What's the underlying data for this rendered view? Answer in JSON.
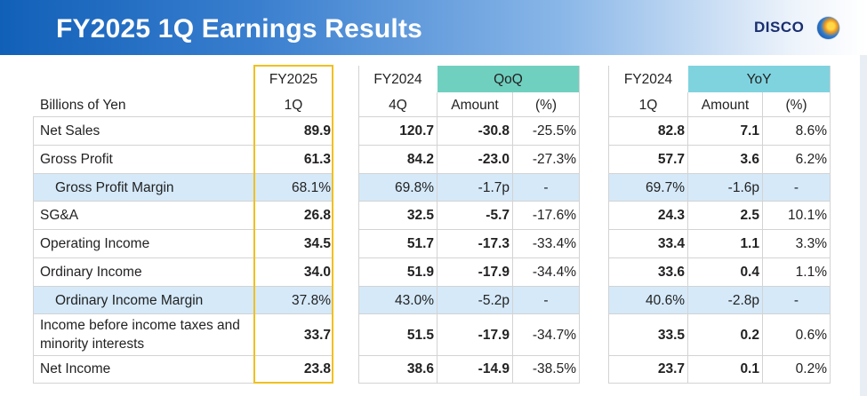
{
  "header": {
    "title": "FY2025 1Q Earnings Results",
    "logo_text": "DISCO"
  },
  "table": {
    "unit_label": "Billions of Yen",
    "col_fy2025": {
      "line1": "FY2025",
      "line2": "1Q"
    },
    "col_prev_q": {
      "line1": "FY2024",
      "line2": "4Q"
    },
    "qoq": {
      "group": "QoQ",
      "amount": "Amount",
      "pct": "(%)"
    },
    "col_prev_y": {
      "line1": "FY2024",
      "line2": "1Q"
    },
    "yoy": {
      "group": "YoY",
      "amount": "Amount",
      "pct": "(%)"
    },
    "rows": [
      {
        "label": "Net Sales",
        "cur": "89.9",
        "q4": "120.7",
        "qoq_amt": "-30.8",
        "qoq_pct": "-25.5%",
        "y1q": "82.8",
        "yoy_amt": "7.1",
        "yoy_pct": "8.6%"
      },
      {
        "label": "Gross Profit",
        "cur": "61.3",
        "q4": "84.2",
        "qoq_amt": "-23.0",
        "qoq_pct": "-27.3%",
        "y1q": "57.7",
        "yoy_amt": "3.6",
        "yoy_pct": "6.2%"
      },
      {
        "label": "Gross Profit Margin",
        "cur": "68.1%",
        "q4": "69.8%",
        "qoq_amt": "-1.7p",
        "qoq_pct": "-",
        "y1q": "69.7%",
        "yoy_amt": "-1.6p",
        "yoy_pct": "-"
      },
      {
        "label": "SG&A",
        "cur": "26.8",
        "q4": "32.5",
        "qoq_amt": "-5.7",
        "qoq_pct": "-17.6%",
        "y1q": "24.3",
        "yoy_amt": "2.5",
        "yoy_pct": "10.1%"
      },
      {
        "label": "Operating Income",
        "cur": "34.5",
        "q4": "51.7",
        "qoq_amt": "-17.3",
        "qoq_pct": "-33.4%",
        "y1q": "33.4",
        "yoy_amt": "1.1",
        "yoy_pct": "3.3%"
      },
      {
        "label": "Ordinary Income",
        "cur": "34.0",
        "q4": "51.9",
        "qoq_amt": "-17.9",
        "qoq_pct": "-34.4%",
        "y1q": "33.6",
        "yoy_amt": "0.4",
        "yoy_pct": "1.1%"
      },
      {
        "label": "Ordinary Income Margin",
        "cur": "37.8%",
        "q4": "43.0%",
        "qoq_amt": "-5.2p",
        "qoq_pct": "-",
        "y1q": "40.6%",
        "yoy_amt": "-2.8p",
        "yoy_pct": "-"
      },
      {
        "label_line1": "Income before income taxes and",
        "label_line2": "minority interests",
        "cur": "33.7",
        "q4": "51.5",
        "qoq_amt": "-17.9",
        "qoq_pct": "-34.7%",
        "y1q": "33.5",
        "yoy_amt": "0.2",
        "yoy_pct": "0.6%"
      },
      {
        "label": "Net Income",
        "cur": "23.8",
        "q4": "38.6",
        "qoq_amt": "-14.9",
        "qoq_pct": "-38.5%",
        "y1q": "23.7",
        "yoy_amt": "0.1",
        "yoy_pct": "0.2%"
      }
    ]
  }
}
